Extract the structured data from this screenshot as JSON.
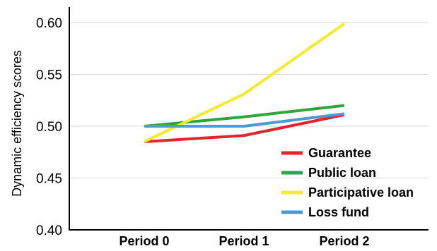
{
  "chart_data": {
    "type": "line",
    "title": "",
    "xlabel": "",
    "ylabel": "Dynamic efficiency scores",
    "categories": [
      "Period 0",
      "Period 1",
      "Period 2"
    ],
    "ylim": [
      0.4,
      0.6
    ],
    "yticks": [
      "0.40",
      "0.45",
      "0.50",
      "0.55",
      "0.60"
    ],
    "grid": true,
    "legend_position": "bottom-right",
    "series": [
      {
        "name": "Guarantee",
        "color": "#e8212b",
        "values": [
          0.485,
          0.491,
          0.511
        ]
      },
      {
        "name": "Public loan",
        "color": "#2ea63a",
        "values": [
          0.5,
          0.509,
          0.52
        ]
      },
      {
        "name": "Participative loan",
        "color": "#f6ea2a",
        "values": [
          0.485,
          0.531,
          0.599
        ]
      },
      {
        "name": "Loss fund",
        "color": "#4b9ad6",
        "values": [
          0.5,
          0.5,
          0.512
        ]
      }
    ]
  }
}
